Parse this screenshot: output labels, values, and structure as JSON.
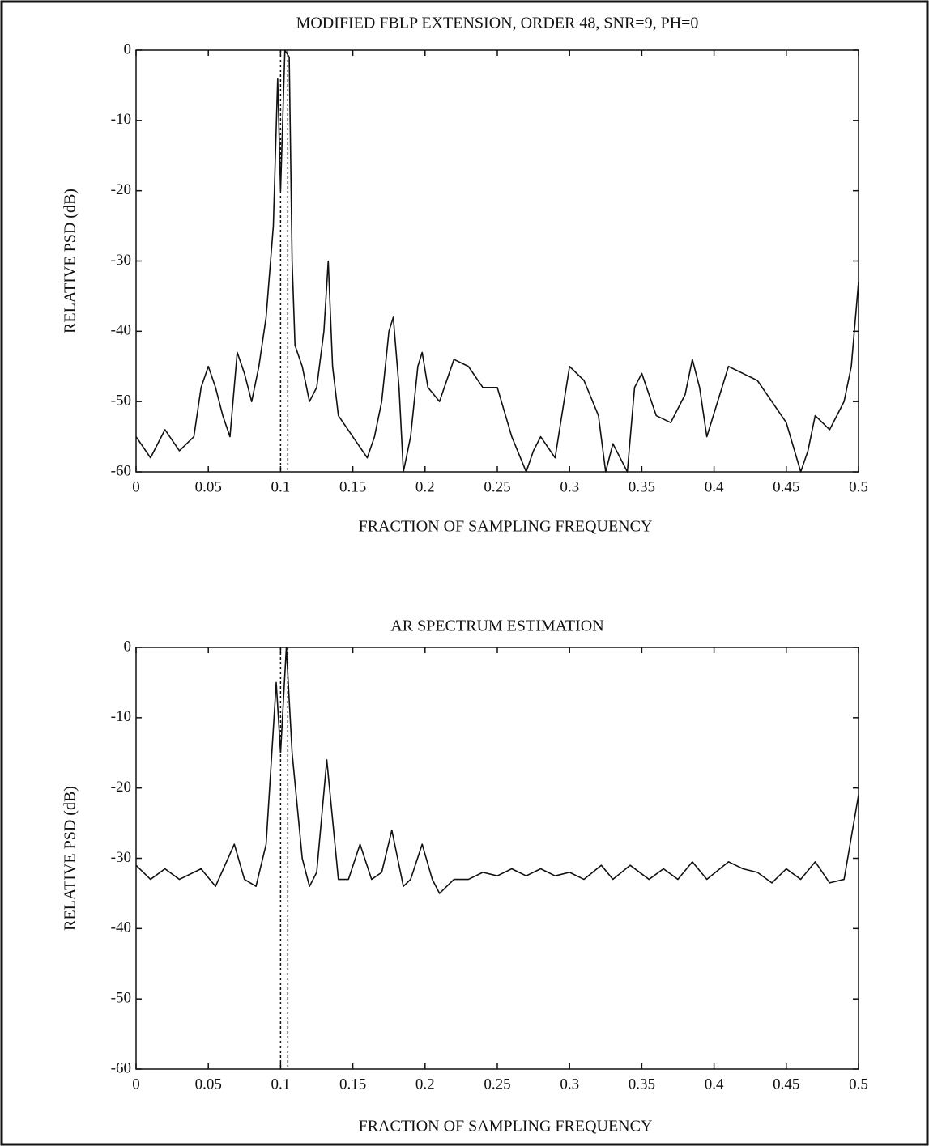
{
  "chart_data": [
    {
      "type": "line",
      "title": "MODIFIED FBLP EXTENSION, ORDER 48, SNR=9, PH=0",
      "xlabel": "FRACTION OF SAMPLING FREQUENCY",
      "ylabel": "RELATIVE PSD (dB)",
      "x": [
        0,
        0.01,
        0.02,
        0.03,
        0.04,
        0.045,
        0.05,
        0.055,
        0.06,
        0.065,
        0.07,
        0.075,
        0.08,
        0.085,
        0.09,
        0.095,
        0.098,
        0.1,
        0.103,
        0.106,
        0.108,
        0.11,
        0.115,
        0.12,
        0.125,
        0.13,
        0.133,
        0.136,
        0.14,
        0.15,
        0.16,
        0.165,
        0.17,
        0.175,
        0.178,
        0.182,
        0.185,
        0.19,
        0.195,
        0.198,
        0.202,
        0.21,
        0.22,
        0.23,
        0.24,
        0.25,
        0.26,
        0.27,
        0.275,
        0.28,
        0.29,
        0.3,
        0.31,
        0.32,
        0.325,
        0.33,
        0.335,
        0.34,
        0.345,
        0.35,
        0.36,
        0.37,
        0.38,
        0.385,
        0.39,
        0.395,
        0.41,
        0.42,
        0.43,
        0.44,
        0.45,
        0.46,
        0.465,
        0.47,
        0.48,
        0.49,
        0.495,
        0.5
      ],
      "series": [
        {
          "color": "#111111",
          "values": [
            -55,
            -58,
            -54,
            -57,
            -55,
            -48,
            -45,
            -48,
            -52,
            -55,
            -43,
            -46,
            -50,
            -45,
            -38,
            -25,
            -4,
            -20,
            0,
            -1,
            -30,
            -42,
            -45,
            -50,
            -48,
            -40,
            -30,
            -45,
            -52,
            -55,
            -58,
            -55,
            -50,
            -40,
            -38,
            -48,
            -60,
            -55,
            -45,
            -43,
            -48,
            -50,
            -44,
            -45,
            -48,
            -48,
            -55,
            -60,
            -57,
            -55,
            -58,
            -45,
            -47,
            -52,
            -60,
            -56,
            -58,
            -60,
            -48,
            -46,
            -52,
            -53,
            -49,
            -44,
            -48,
            -55,
            -45,
            -46,
            -47,
            -50,
            -53,
            -60,
            -57,
            -52,
            -54,
            -50,
            -45,
            -33
          ]
        }
      ],
      "vlines": [
        0.1,
        0.105
      ],
      "xlim": [
        0,
        0.5
      ],
      "xticks": [
        0,
        0.05,
        0.1,
        0.15,
        0.2,
        0.25,
        0.3,
        0.35,
        0.4,
        0.45,
        0.5
      ],
      "ylim": [
        -60,
        0
      ],
      "yticks": [
        0,
        -10,
        -20,
        -30,
        -40,
        -50,
        -60
      ]
    },
    {
      "type": "line",
      "title": "AR SPECTRUM ESTIMATION",
      "xlabel": "FRACTION OF SAMPLING FREQUENCY",
      "ylabel": "RELATIVE PSD (dB)",
      "x": [
        0,
        0.01,
        0.02,
        0.03,
        0.045,
        0.055,
        0.068,
        0.075,
        0.083,
        0.09,
        0.097,
        0.1,
        0.104,
        0.108,
        0.115,
        0.12,
        0.125,
        0.132,
        0.14,
        0.147,
        0.155,
        0.163,
        0.17,
        0.177,
        0.185,
        0.19,
        0.198,
        0.205,
        0.21,
        0.22,
        0.23,
        0.24,
        0.25,
        0.26,
        0.27,
        0.28,
        0.29,
        0.3,
        0.31,
        0.322,
        0.33,
        0.342,
        0.355,
        0.365,
        0.375,
        0.385,
        0.395,
        0.41,
        0.42,
        0.43,
        0.44,
        0.45,
        0.46,
        0.47,
        0.48,
        0.49,
        0.5
      ],
      "series": [
        {
          "color": "#111111",
          "values": [
            -31,
            -33,
            -31.5,
            -33,
            -31.5,
            -34,
            -28,
            -33,
            -34,
            -28,
            -5,
            -15,
            0,
            -15,
            -30,
            -34,
            -32,
            -16,
            -33,
            -33,
            -28,
            -33,
            -32,
            -26,
            -34,
            -33,
            -28,
            -33,
            -35,
            -33,
            -33,
            -32,
            -32.5,
            -31.5,
            -32.5,
            -31.5,
            -32.5,
            -32,
            -33,
            -31,
            -33,
            -31,
            -33,
            -31.5,
            -33,
            -30.5,
            -33,
            -30.5,
            -31.5,
            -32,
            -33.5,
            -31.5,
            -33,
            -30.5,
            -33.5,
            -33,
            -21
          ]
        }
      ],
      "vlines": [
        0.1,
        0.105
      ],
      "xlim": [
        0,
        0.5
      ],
      "xticks": [
        0,
        0.05,
        0.1,
        0.15,
        0.2,
        0.25,
        0.3,
        0.35,
        0.4,
        0.45,
        0.5
      ],
      "ylim": [
        -60,
        0
      ],
      "yticks": [
        0,
        -10,
        -20,
        -30,
        -40,
        -50,
        -60
      ]
    }
  ]
}
